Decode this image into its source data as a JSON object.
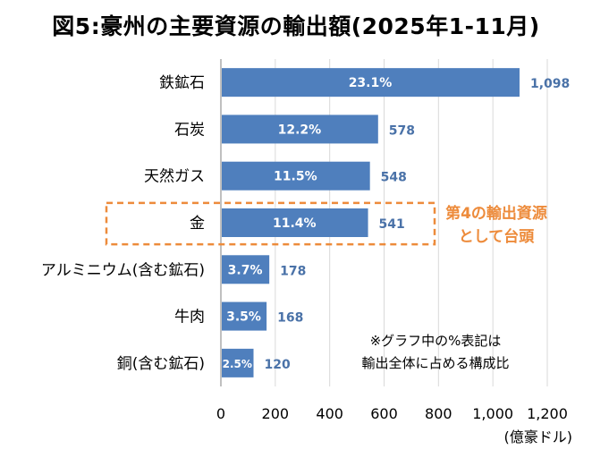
{
  "chart_data": {
    "type": "bar",
    "orientation": "horizontal",
    "title": "図5:豪州の主要資源の輸出額(2025年1-11月)",
    "categories": [
      "鉄鉱石",
      "石炭",
      "天然ガス",
      "金",
      "アルミニウム(含む鉱石)",
      "牛肉",
      "銅(含む鉱石)"
    ],
    "values": [
      1098,
      578,
      548,
      541,
      178,
      168,
      120
    ],
    "value_labels": [
      "1,098",
      "578",
      "548",
      "541",
      "178",
      "168",
      "120"
    ],
    "share_labels": [
      "23.1%",
      "12.2%",
      "11.5%",
      "11.4%",
      "3.7%",
      "3.5%",
      "2.5%"
    ],
    "xlim": [
      0,
      1200
    ],
    "xticks": [
      0,
      200,
      400,
      600,
      800,
      1000,
      1200
    ],
    "xtick_labels": [
      "0",
      "200",
      "400",
      "600",
      "800",
      "1,000",
      "1,200"
    ],
    "xlabel": "(億豪ドル)",
    "grid": true,
    "highlight_index": 3,
    "callout": [
      "第4の輸出資源",
      "として台頭"
    ],
    "note": [
      "※グラフ中の%表記は",
      "輸出全体に占める構成比"
    ],
    "colors": {
      "bar": "#4f7fbd",
      "value_label": "#4a72a8",
      "callout": "#ed8b3b",
      "grid": "#d9d9d9"
    }
  }
}
